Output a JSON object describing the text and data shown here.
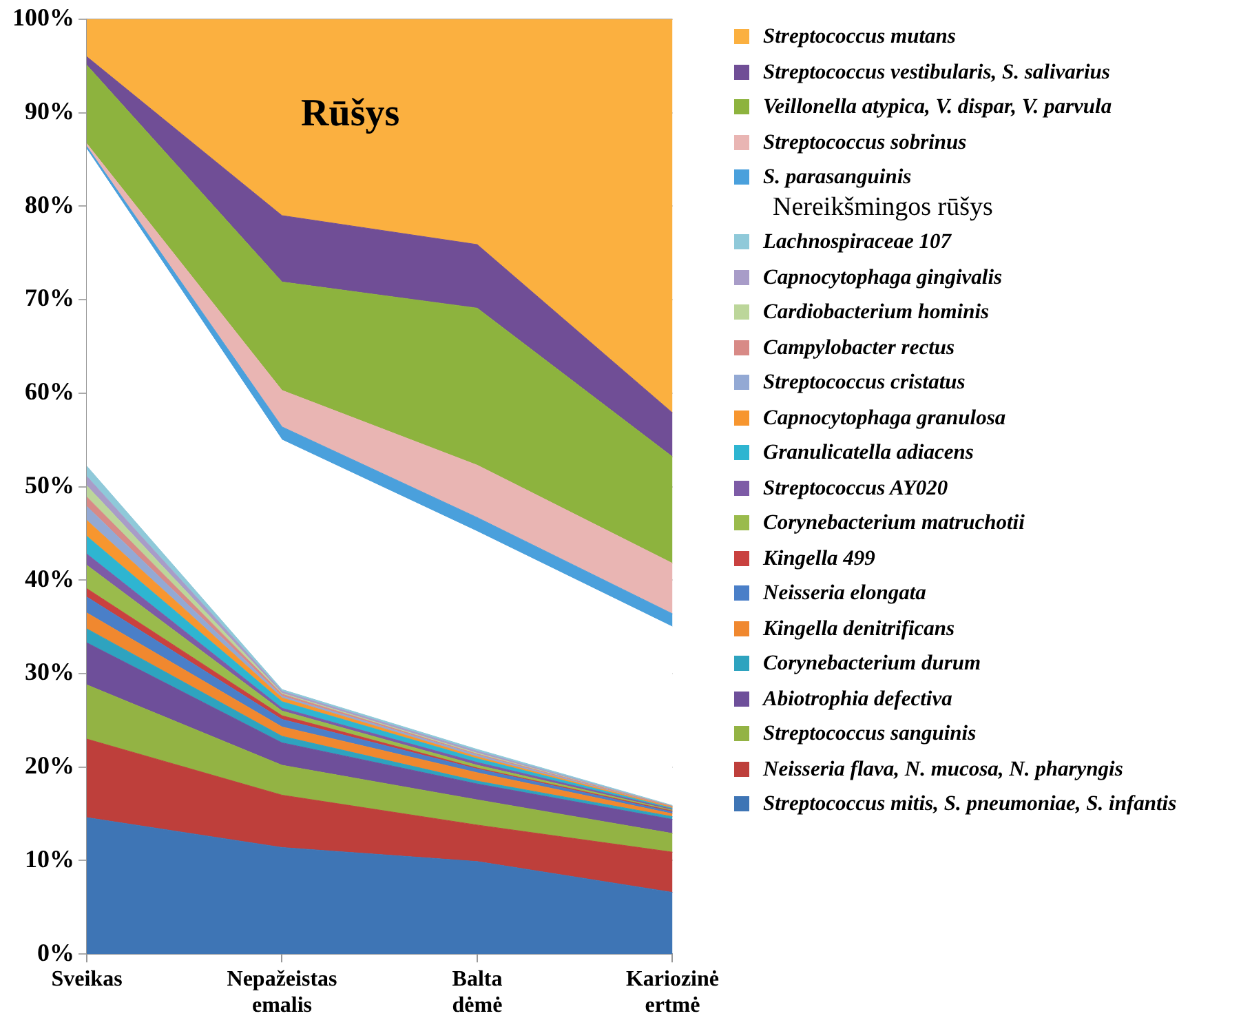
{
  "chart_data": {
    "type": "area",
    "title": "Rūšys",
    "stacked": true,
    "grid": "y",
    "legend": "right",
    "categories": [
      "Sveikas",
      "Nepažeistas emalis",
      "Balta dėmė",
      "Kariozinė ertmė"
    ],
    "annotations": [
      "Nereikšmingos rūšys"
    ],
    "ylim": [
      0,
      100
    ],
    "yticks": [
      {
        "value": 0,
        "label": "0%"
      },
      {
        "value": 10,
        "label": "10%"
      },
      {
        "value": 20,
        "label": "20%"
      },
      {
        "value": 30,
        "label": "30%"
      },
      {
        "value": 40,
        "label": "40%"
      },
      {
        "value": 50,
        "label": "50%"
      },
      {
        "value": 60,
        "label": "60%"
      },
      {
        "value": 70,
        "label": "70%"
      },
      {
        "value": 80,
        "label": "80%"
      },
      {
        "value": 90,
        "label": "90%"
      },
      {
        "value": 100,
        "label": "100%"
      }
    ],
    "series": [
      {
        "name": "Streptococcus mitis, S. pneumoniae, S. infantis",
        "color": "#3e75b5",
        "values": [
          14.6,
          11.4,
          9.9,
          6.6
        ]
      },
      {
        "name": "Neisseria flava, N. mucosa, N. pharyngis",
        "color": "#be3f3b",
        "values": [
          8.4,
          5.6,
          3.9,
          4.3
        ]
      },
      {
        "name": "Streptococcus sanguinis",
        "color": "#93b344",
        "values": [
          5.8,
          3.2,
          2.7,
          2.0
        ]
      },
      {
        "name": "Abiotrophia defectiva",
        "color": "#6e4f9a",
        "values": [
          4.5,
          2.4,
          1.7,
          1.5
        ]
      },
      {
        "name": "Corynebacterium durum",
        "color": "#2ea3bf",
        "values": [
          1.5,
          0.7,
          0.3,
          0.3
        ]
      },
      {
        "name": "Kingella denitrificans",
        "color": "#f0882f",
        "values": [
          1.7,
          1.0,
          0.9,
          0.3
        ]
      },
      {
        "name": "Neisseria elongata",
        "color": "#4a7fc8",
        "values": [
          1.7,
          0.8,
          0.4,
          0.2
        ]
      },
      {
        "name": "Kingella 499",
        "color": "#c9413f",
        "values": [
          0.9,
          0.4,
          0.1,
          0.1
        ]
      },
      {
        "name": "Corynebacterium matruchotii",
        "color": "#9abb4c",
        "values": [
          2.5,
          0.5,
          0.3,
          0.1
        ]
      },
      {
        "name": "Streptococcus AY020",
        "color": "#7d5ba6",
        "values": [
          1.2,
          0.3,
          0.3,
          0.1
        ]
      },
      {
        "name": "Granulicatella adiacens",
        "color": "#2eb5d1",
        "values": [
          1.9,
          0.7,
          0.4,
          0.1
        ]
      },
      {
        "name": "Capnocytophaga granulosa",
        "color": "#f7962f",
        "values": [
          1.7,
          0.4,
          0.2,
          0.1
        ]
      },
      {
        "name": "Streptococcus cristatus",
        "color": "#93a9d4",
        "values": [
          1.5,
          0.2,
          0.2,
          0
        ]
      },
      {
        "name": "Campylobacter rectus",
        "color": "#d88a86",
        "values": [
          1.0,
          0.2,
          0.1,
          0.1
        ]
      },
      {
        "name": "Cardiobacterium hominis",
        "color": "#bcd69a",
        "values": [
          1.2,
          0.1,
          0.1,
          0
        ]
      },
      {
        "name": "Capnocytophaga gingivalis",
        "color": "#a89cc8",
        "values": [
          1.0,
          0.2,
          0.2,
          0
        ]
      },
      {
        "name": "Lachnospiraceae 107",
        "color": "#8fc9d9",
        "values": [
          1.1,
          0.2,
          0.2,
          0.1
        ]
      },
      {
        "color": "#ffffff",
        "values": [
          33.9,
          26.7,
          23.3,
          19.1
        ]
      },
      {
        "name": "S. parasanguinis",
        "color": "#4aa0dc",
        "values": [
          0.3,
          1.4,
          1.5,
          1.4
        ]
      },
      {
        "name": "Streptococcus sobrinus",
        "color": "#e9b5b3",
        "values": [
          0.3,
          3.9,
          5.6,
          5.4
        ]
      },
      {
        "name": "Veillonella atypica, V. dispar, V. parvula",
        "color": "#8db33e",
        "values": [
          8.4,
          11.6,
          16.8,
          11.4
        ]
      },
      {
        "name": "Streptococcus vestibularis, S. salivarius",
        "color": "#704e96",
        "values": [
          0.9,
          7.1,
          6.8,
          4.7
        ]
      },
      {
        "name": "Streptococcus mutans",
        "color": "#fbb040",
        "values": [
          4.0,
          21.0,
          24.1,
          42.1
        ]
      }
    ]
  }
}
